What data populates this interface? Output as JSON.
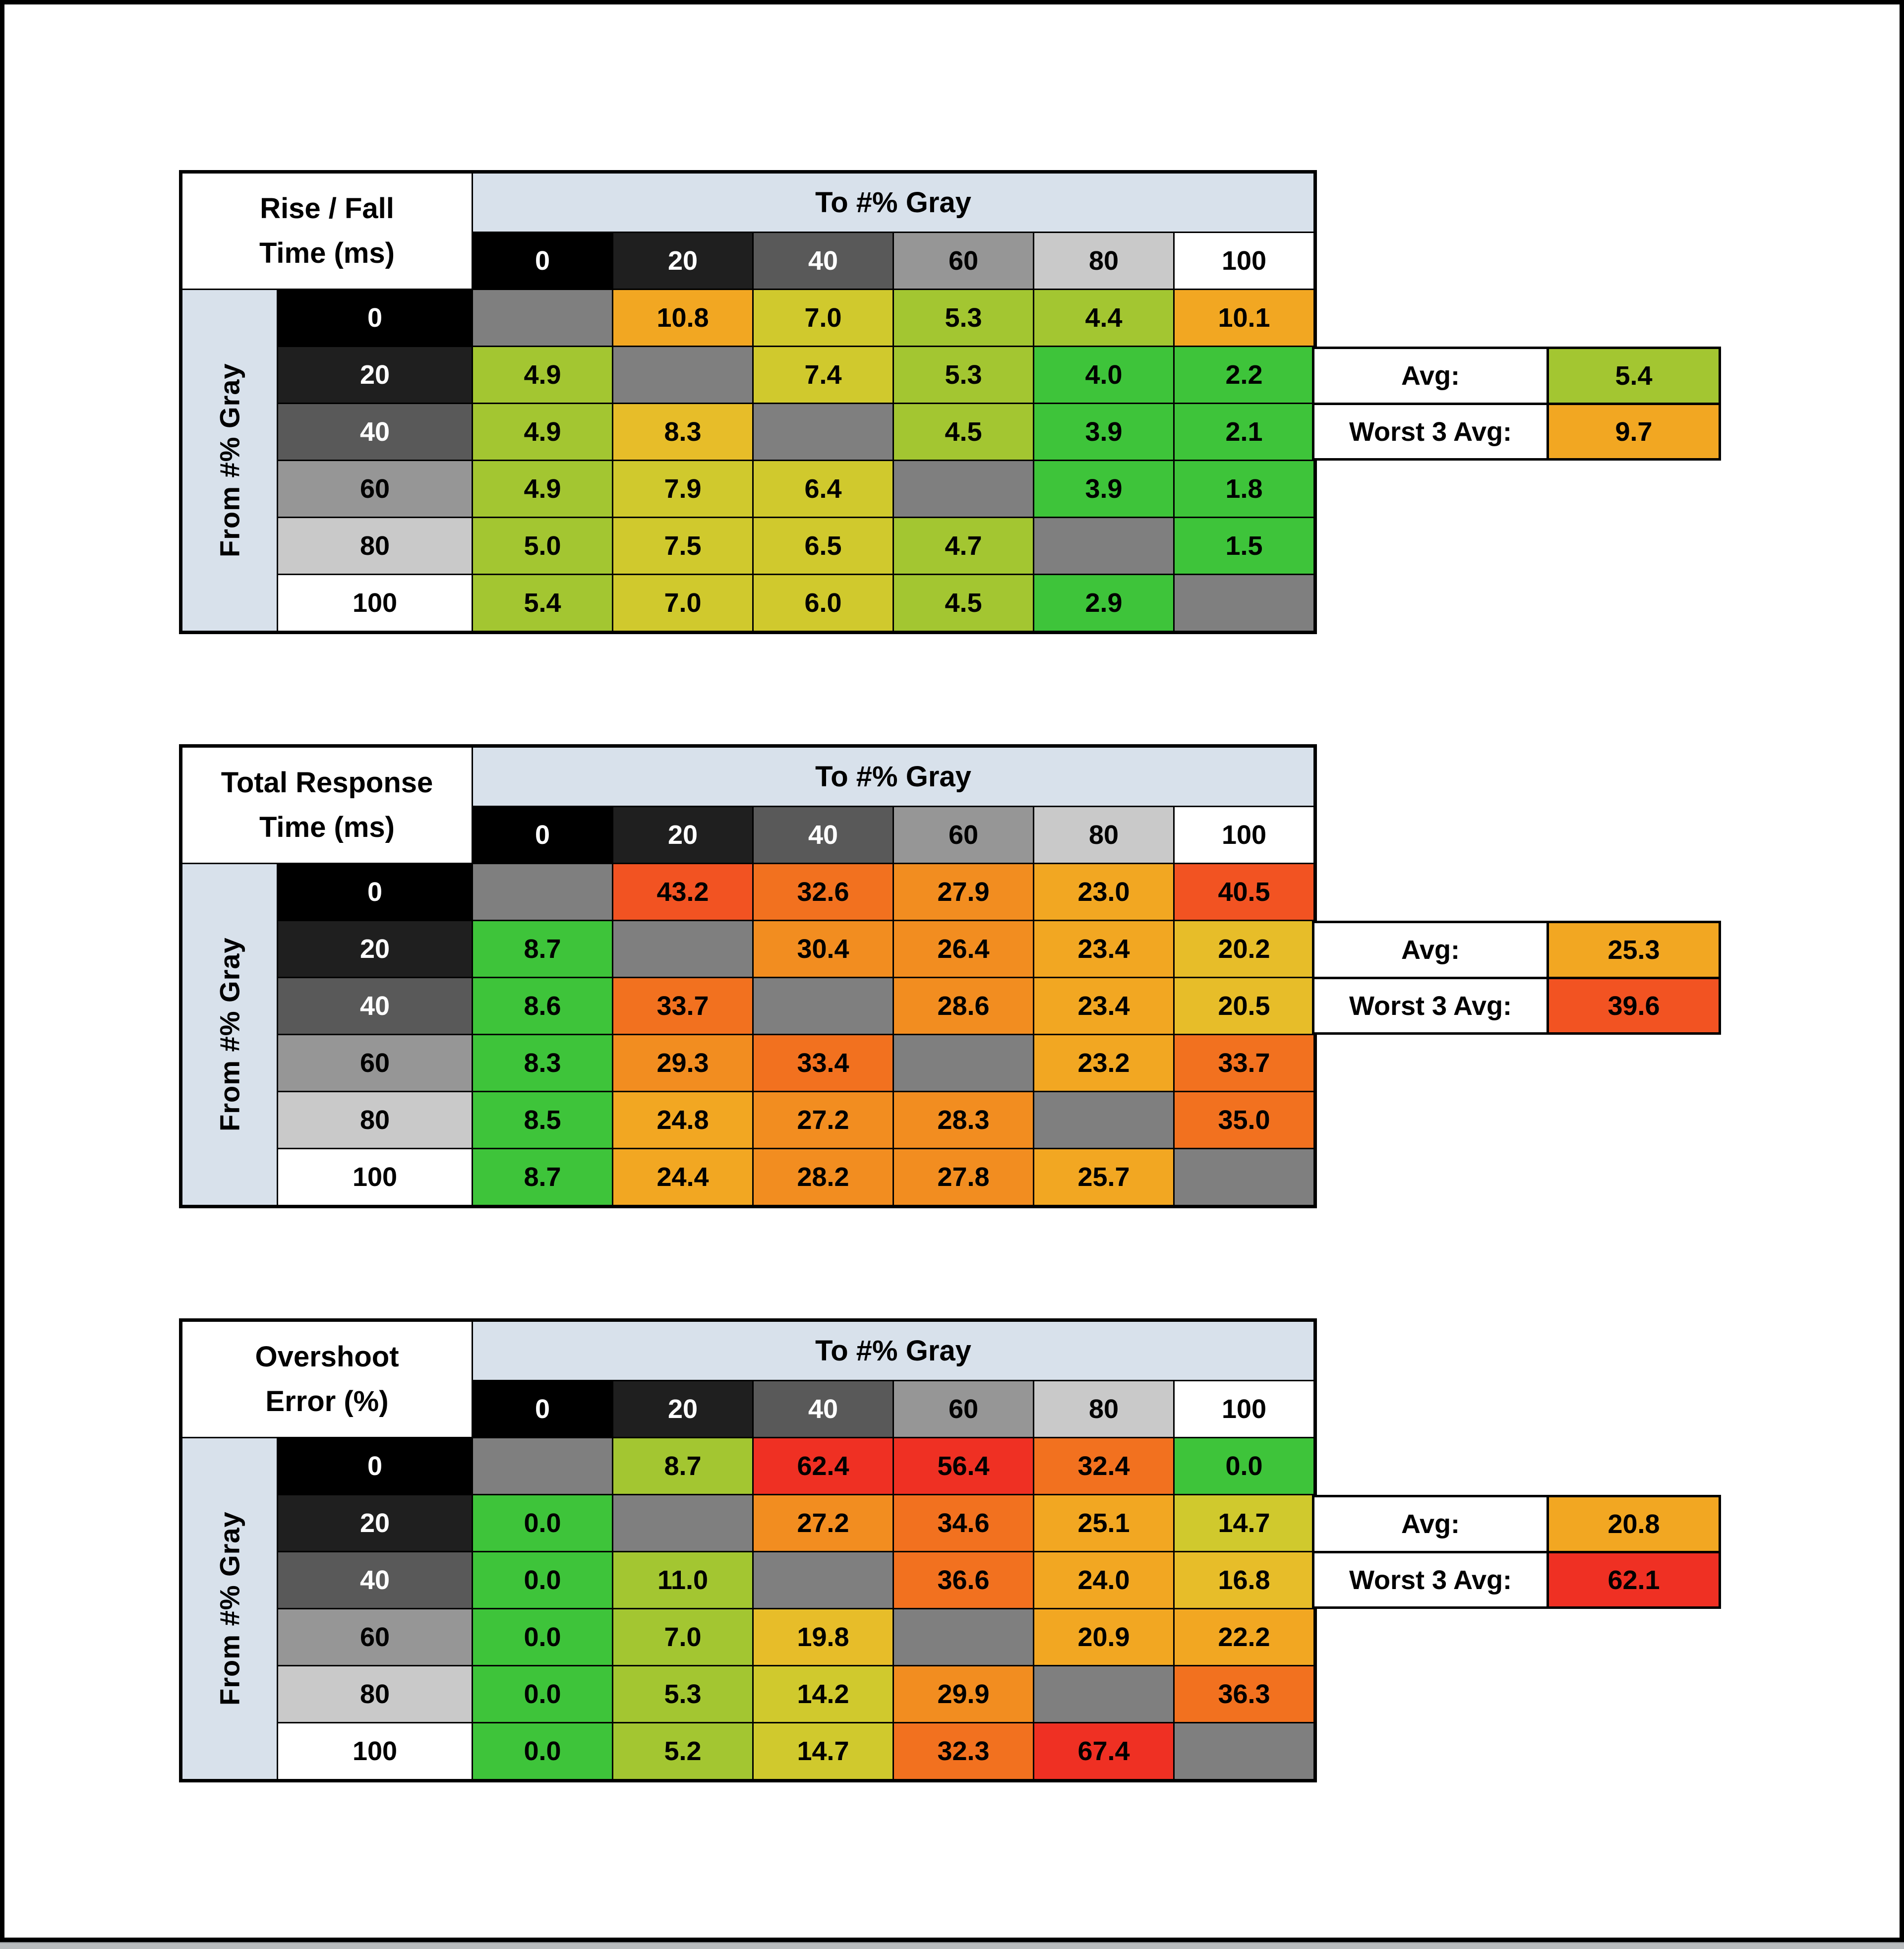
{
  "page": {
    "background": "#ffffff",
    "frame_color": "#000000",
    "bottom_strip_color": "#b9bcbe"
  },
  "palette": {
    "c0": "#3ec43a",
    "c1": "#a3c631",
    "c2": "#d0c92d",
    "c3": "#e7bd29",
    "c4": "#f2a722",
    "c5": "#f28d20",
    "c6": "#f2711f",
    "c7": "#f25322",
    "c8": "#ef3023",
    "diagonal": "#7f7f7f",
    "band": "#d8e1eb",
    "header_shades": [
      "#000000",
      "#1f1f1f",
      "#595959",
      "#969696",
      "#c9c9c9",
      "#ffffff"
    ],
    "header_text": [
      "#ffffff",
      "#ffffff",
      "#ffffff",
      "#000000",
      "#000000",
      "#000000"
    ]
  },
  "chart_data": [
    {
      "type": "heatmap",
      "slug": "rise-fall-time",
      "title": [
        "Rise / Fall",
        "Time (ms)"
      ],
      "x_axis_label": "To #% Gray",
      "y_axis_label": "From #% Gray",
      "x_ticks": [
        "0",
        "20",
        "40",
        "60",
        "80",
        "100"
      ],
      "y_ticks": [
        "0",
        "20",
        "40",
        "60",
        "80",
        "100"
      ],
      "values": [
        [
          null,
          10.8,
          7.0,
          5.3,
          4.4,
          10.1
        ],
        [
          4.9,
          null,
          7.4,
          5.3,
          4.0,
          2.2
        ],
        [
          4.9,
          8.3,
          null,
          4.5,
          3.9,
          2.1
        ],
        [
          4.9,
          7.9,
          6.4,
          null,
          3.9,
          1.8
        ],
        [
          5.0,
          7.5,
          6.5,
          4.7,
          null,
          1.5
        ],
        [
          5.4,
          7.0,
          6.0,
          4.5,
          2.9,
          null
        ]
      ],
      "cell_colors": [
        [
          null,
          "c4",
          "c2",
          "c1",
          "c1",
          "c4"
        ],
        [
          "c1",
          null,
          "c2",
          "c1",
          "c0",
          "c0"
        ],
        [
          "c1",
          "c3",
          null,
          "c1",
          "c0",
          "c0"
        ],
        [
          "c1",
          "c2",
          "c2",
          null,
          "c0",
          "c0"
        ],
        [
          "c1",
          "c2",
          "c2",
          "c1",
          null,
          "c0"
        ],
        [
          "c1",
          "c2",
          "c2",
          "c1",
          "c0",
          null
        ]
      ],
      "summary": {
        "avg_label": "Avg:",
        "avg_value": 5.4,
        "avg_color": "c1",
        "worst_label": "Worst 3 Avg:",
        "worst_value": 9.7,
        "worst_color": "c4"
      }
    },
    {
      "type": "heatmap",
      "slug": "total-response-time",
      "title": [
        "Total Response",
        "Time (ms)"
      ],
      "x_axis_label": "To #% Gray",
      "y_axis_label": "From #% Gray",
      "x_ticks": [
        "0",
        "20",
        "40",
        "60",
        "80",
        "100"
      ],
      "y_ticks": [
        "0",
        "20",
        "40",
        "60",
        "80",
        "100"
      ],
      "values": [
        [
          null,
          43.2,
          32.6,
          27.9,
          23.0,
          40.5
        ],
        [
          8.7,
          null,
          30.4,
          26.4,
          23.4,
          20.2
        ],
        [
          8.6,
          33.7,
          null,
          28.6,
          23.4,
          20.5
        ],
        [
          8.3,
          29.3,
          33.4,
          null,
          23.2,
          33.7
        ],
        [
          8.5,
          24.8,
          27.2,
          28.3,
          null,
          35.0
        ],
        [
          8.7,
          24.4,
          28.2,
          27.8,
          25.7,
          null
        ]
      ],
      "cell_colors": [
        [
          null,
          "c7",
          "c6",
          "c5",
          "c4",
          "c7"
        ],
        [
          "c0",
          null,
          "c5",
          "c5",
          "c4",
          "c3"
        ],
        [
          "c0",
          "c6",
          null,
          "c5",
          "c4",
          "c3"
        ],
        [
          "c0",
          "c5",
          "c6",
          null,
          "c4",
          "c6"
        ],
        [
          "c0",
          "c4",
          "c5",
          "c5",
          null,
          "c6"
        ],
        [
          "c0",
          "c4",
          "c5",
          "c5",
          "c4",
          null
        ]
      ],
      "summary": {
        "avg_label": "Avg:",
        "avg_value": 25.3,
        "avg_color": "c4",
        "worst_label": "Worst 3 Avg:",
        "worst_value": 39.6,
        "worst_color": "c7"
      }
    },
    {
      "type": "heatmap",
      "slug": "overshoot-error",
      "title": [
        "Overshoot",
        "Error (%)"
      ],
      "x_axis_label": "To #% Gray",
      "y_axis_label": "From #% Gray",
      "x_ticks": [
        "0",
        "20",
        "40",
        "60",
        "80",
        "100"
      ],
      "y_ticks": [
        "0",
        "20",
        "40",
        "60",
        "80",
        "100"
      ],
      "values": [
        [
          null,
          8.7,
          62.4,
          56.4,
          32.4,
          0.0
        ],
        [
          0.0,
          null,
          27.2,
          34.6,
          25.1,
          14.7
        ],
        [
          0.0,
          11.0,
          null,
          36.6,
          24.0,
          16.8
        ],
        [
          0.0,
          7.0,
          19.8,
          null,
          20.9,
          22.2
        ],
        [
          0.0,
          5.3,
          14.2,
          29.9,
          null,
          36.3
        ],
        [
          0.0,
          5.2,
          14.7,
          32.3,
          67.4,
          null
        ]
      ],
      "cell_colors": [
        [
          null,
          "c1",
          "c8",
          "c8",
          "c6",
          "c0"
        ],
        [
          "c0",
          null,
          "c5",
          "c6",
          "c4",
          "c2"
        ],
        [
          "c0",
          "c1",
          null,
          "c6",
          "c4",
          "c3"
        ],
        [
          "c0",
          "c1",
          "c3",
          null,
          "c4",
          "c4"
        ],
        [
          "c0",
          "c1",
          "c2",
          "c5",
          null,
          "c6"
        ],
        [
          "c0",
          "c1",
          "c2",
          "c6",
          "c8",
          null
        ]
      ],
      "summary": {
        "avg_label": "Avg:",
        "avg_value": 20.8,
        "avg_color": "c4",
        "worst_label": "Worst 3 Avg:",
        "worst_value": 62.1,
        "worst_color": "c8"
      }
    }
  ]
}
